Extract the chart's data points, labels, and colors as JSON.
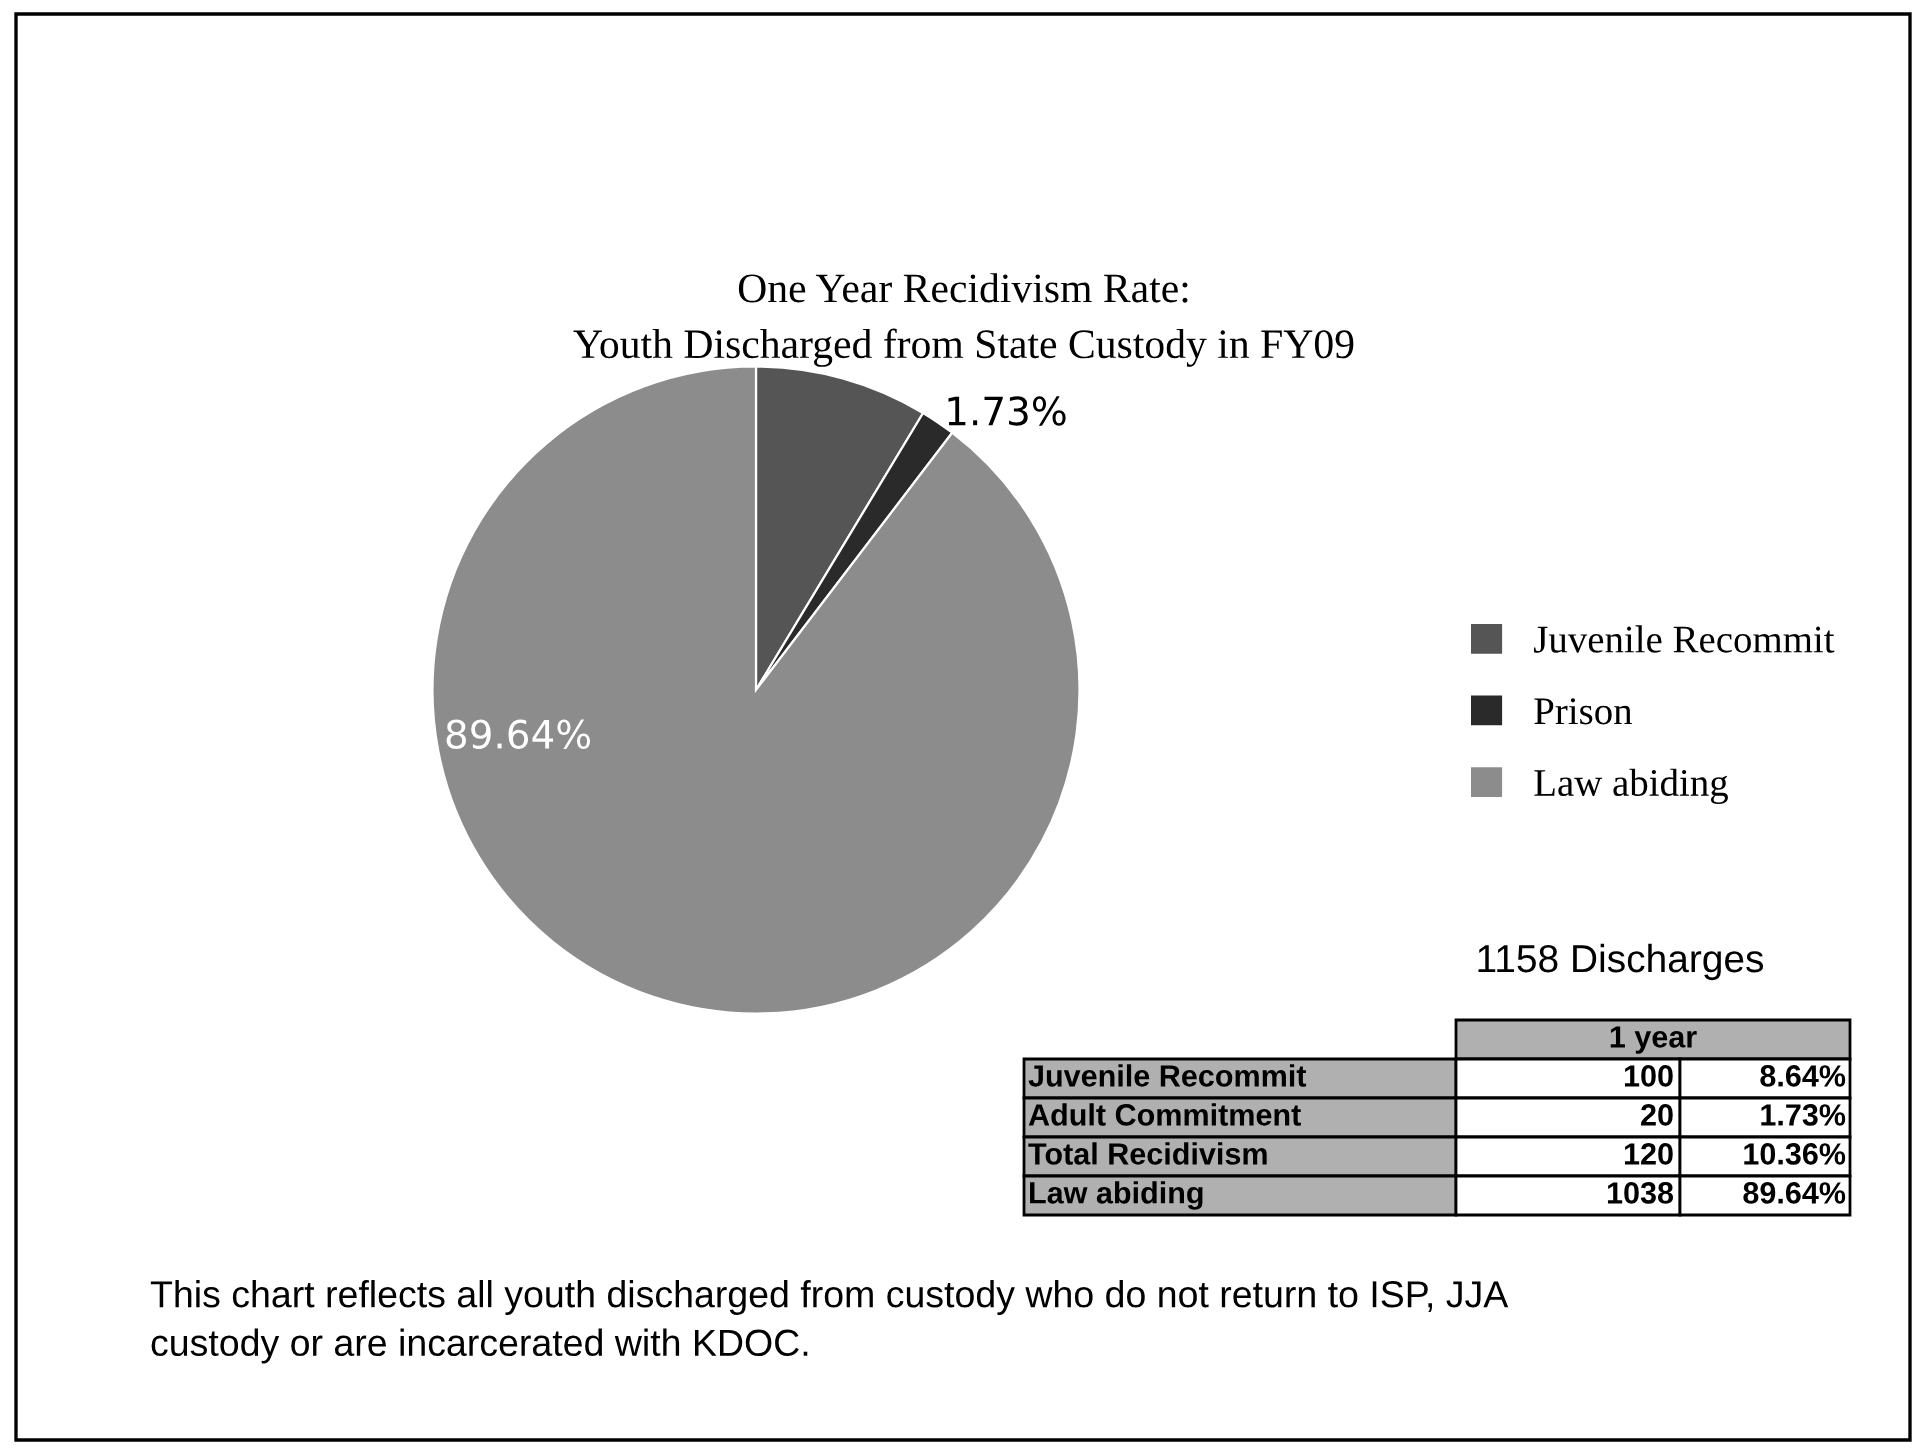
{
  "chart_data": {
    "type": "pie",
    "title": "One Year Recidivism Rate:\nYouth Discharged from State Custody in FY09",
    "categories": [
      "Juvenile Recommit",
      "Prison",
      "Law abiding"
    ],
    "values": [
      8.64,
      1.73,
      89.64
    ],
    "colors": [
      "#555555",
      "#2a2a2a",
      "#8c8c8c"
    ],
    "value_labels": [
      null,
      "1.73%",
      "89.64%"
    ],
    "legend": "right",
    "annotations": [
      "1158 Discharges",
      "1 year",
      "Juvenile Recommit",
      "100",
      "8.64%",
      "Adult Commitment",
      "20",
      "1.73%",
      "Total Recidivism",
      "120",
      "10.36%",
      "Law abiding",
      "1038",
      "89.64%",
      "This chart reflects all youth discharged from custody who do not return to ISP, JJA\ncustody or are incarcerated with KDOC."
    ]
  }
}
